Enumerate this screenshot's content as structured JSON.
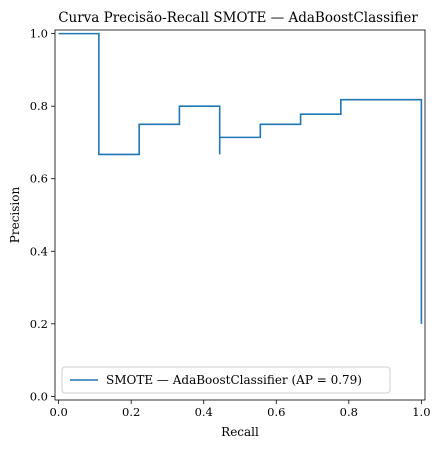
{
  "chart_data": {
    "type": "line",
    "title": "Curva Precisão-Recall SMOTE — AdaBoostClassifier",
    "xlabel": "Recall",
    "ylabel": "Precision",
    "xlim": [
      -0.01,
      1.01
    ],
    "ylim": [
      -0.01,
      1.01
    ],
    "xticks": [
      0.0,
      0.2,
      0.4,
      0.6,
      0.8,
      1.0
    ],
    "xtick_labels": [
      "0.0",
      "0.2",
      "0.4",
      "0.6",
      "0.8",
      "1.0"
    ],
    "yticks": [
      0.0,
      0.2,
      0.4,
      0.6,
      0.8,
      1.0
    ],
    "ytick_labels": [
      "0.0",
      "0.2",
      "0.4",
      "0.6",
      "0.8",
      "1.0"
    ],
    "grid": false,
    "legend_position": "lower-left",
    "series": [
      {
        "name": "SMOTE — AdaBoostClassifier (AP = 0.79)",
        "color": "#1f77b4",
        "drawstyle": "steps-post",
        "points": [
          [
            0.0,
            1.0
          ],
          [
            0.111,
            1.0
          ],
          [
            0.111,
            0.667
          ],
          [
            0.222,
            0.667
          ],
          [
            0.222,
            0.75
          ],
          [
            0.333,
            0.75
          ],
          [
            0.333,
            0.8
          ],
          [
            0.444,
            0.8
          ],
          [
            0.444,
            0.667
          ],
          [
            0.444,
            0.714
          ],
          [
            0.556,
            0.714
          ],
          [
            0.556,
            0.75
          ],
          [
            0.667,
            0.75
          ],
          [
            0.667,
            0.778
          ],
          [
            0.778,
            0.778
          ],
          [
            0.778,
            0.818
          ],
          [
            1.0,
            0.818
          ],
          [
            1.0,
            0.2
          ]
        ]
      }
    ]
  }
}
